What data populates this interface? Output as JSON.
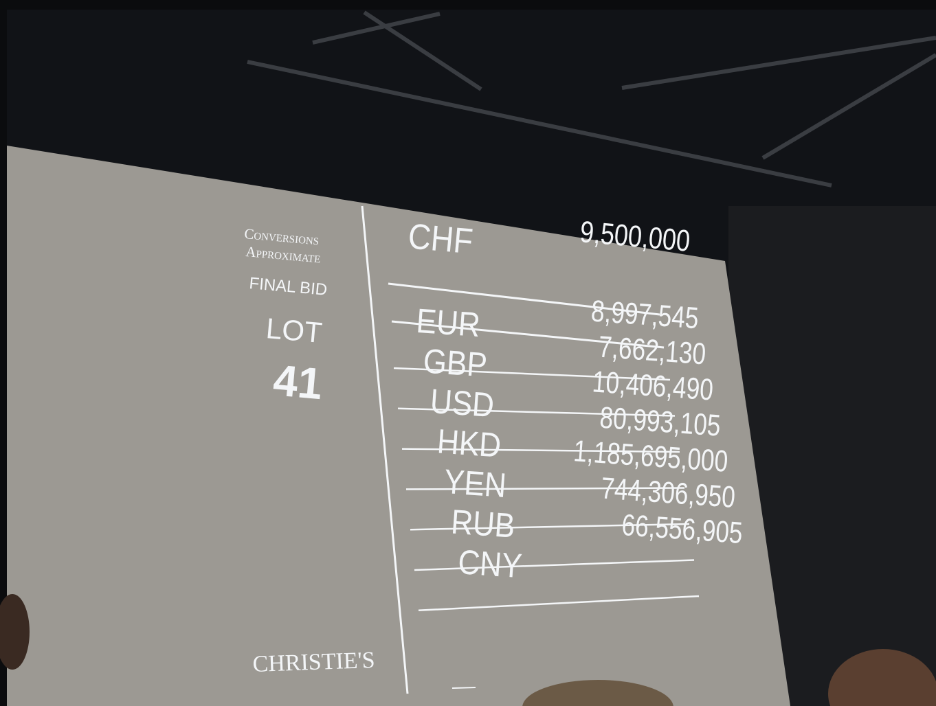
{
  "left_panel": {
    "note_line_1": "Conversions",
    "note_line_2": "Approximate",
    "status": "FINAL BID",
    "lot_label": "LOT",
    "lot_number": "41",
    "brand": "CHRISTIE'S"
  },
  "base": {
    "currency": "CHF",
    "amount": "9,500,000"
  },
  "conversions": [
    {
      "currency": "EUR",
      "amount": "8,997,545"
    },
    {
      "currency": "GBP",
      "amount": "7,662,130"
    },
    {
      "currency": "USD",
      "amount": "10,406,490"
    },
    {
      "currency": "HKD",
      "amount": "80,993,105"
    },
    {
      "currency": "YEN",
      "amount": "1,185,695,000"
    },
    {
      "currency": "RUB",
      "amount": "744,306,950"
    },
    {
      "currency": "CNY",
      "amount": "66,556,905"
    }
  ]
}
